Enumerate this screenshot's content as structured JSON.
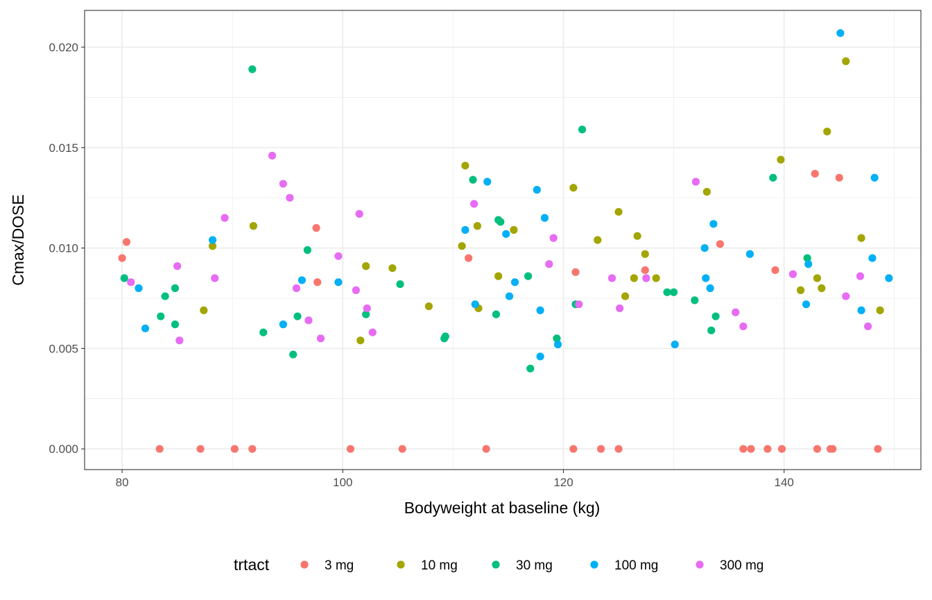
{
  "chart_data": {
    "type": "scatter",
    "xlabel": "Bodyweight at baseline (kg)",
    "ylabel": "Cmax/DOSE",
    "xlim": [
      76.6,
      152.4
    ],
    "ylim": [
      -0.00103,
      0.02183
    ],
    "x_ticks": [
      80,
      100,
      120,
      140
    ],
    "x_tick_labels": [
      "80",
      "100",
      "120",
      "140"
    ],
    "y_ticks": [
      0.0,
      0.005,
      0.01,
      0.015,
      0.02
    ],
    "y_tick_labels": [
      "0.000",
      "0.005",
      "0.010",
      "0.015",
      "0.020"
    ],
    "grid": true,
    "legend_position": "bottom",
    "legend_title": "trtact",
    "series": [
      {
        "name": "3 mg",
        "color": "#F8766D",
        "points": [
          [
            80.0,
            0.0095
          ],
          [
            80.4,
            0.0103
          ],
          [
            83.4,
            0.0
          ],
          [
            87.1,
            0.0
          ],
          [
            90.2,
            0.0
          ],
          [
            91.8,
            0.0
          ],
          [
            97.6,
            0.011
          ],
          [
            97.7,
            0.0083
          ],
          [
            100.7,
            0.0
          ],
          [
            105.4,
            0.0
          ],
          [
            111.4,
            0.0095
          ],
          [
            113.0,
            0.0
          ],
          [
            120.9,
            0.0
          ],
          [
            121.1,
            0.0088
          ],
          [
            123.4,
            0.0
          ],
          [
            125.0,
            0.0
          ],
          [
            127.4,
            0.0089
          ],
          [
            134.2,
            0.0102
          ],
          [
            136.3,
            0.0
          ],
          [
            137.0,
            0.0
          ],
          [
            138.5,
            0.0
          ],
          [
            139.2,
            0.0089
          ],
          [
            139.8,
            0.0
          ],
          [
            142.8,
            0.0137
          ],
          [
            143.0,
            0.0
          ],
          [
            144.2,
            0.0
          ],
          [
            144.4,
            0.0
          ],
          [
            145.0,
            0.0135
          ],
          [
            148.5,
            0.0
          ]
        ]
      },
      {
        "name": "10 mg",
        "color": "#A3A500",
        "points": [
          [
            87.4,
            0.0069
          ],
          [
            88.2,
            0.0101
          ],
          [
            91.9,
            0.0111
          ],
          [
            101.6,
            0.0054
          ],
          [
            102.1,
            0.0091
          ],
          [
            104.5,
            0.009
          ],
          [
            107.8,
            0.0071
          ],
          [
            110.8,
            0.0101
          ],
          [
            111.1,
            0.0141
          ],
          [
            112.2,
            0.0111
          ],
          [
            112.3,
            0.007
          ],
          [
            114.1,
            0.0086
          ],
          [
            115.5,
            0.0109
          ],
          [
            120.9,
            0.013
          ],
          [
            123.1,
            0.0104
          ],
          [
            125.0,
            0.0118
          ],
          [
            125.6,
            0.0076
          ],
          [
            126.4,
            0.0085
          ],
          [
            126.7,
            0.0106
          ],
          [
            127.4,
            0.0097
          ],
          [
            128.4,
            0.0085
          ],
          [
            133.0,
            0.0128
          ],
          [
            139.7,
            0.0144
          ],
          [
            141.5,
            0.0079
          ],
          [
            143.0,
            0.0085
          ],
          [
            143.4,
            0.008
          ],
          [
            143.9,
            0.0158
          ],
          [
            145.6,
            0.0193
          ],
          [
            147.0,
            0.0105
          ],
          [
            148.7,
            0.0069
          ]
        ]
      },
      {
        "name": "30 mg",
        "color": "#00BF7D",
        "points": [
          [
            80.2,
            0.0085
          ],
          [
            83.5,
            0.0066
          ],
          [
            83.9,
            0.0076
          ],
          [
            84.8,
            0.008
          ],
          [
            84.8,
            0.0062
          ],
          [
            91.8,
            0.0189
          ],
          [
            92.8,
            0.0058
          ],
          [
            95.5,
            0.0047
          ],
          [
            95.9,
            0.0066
          ],
          [
            96.8,
            0.0099
          ],
          [
            102.1,
            0.0067
          ],
          [
            105.2,
            0.0082
          ],
          [
            109.2,
            0.0055
          ],
          [
            109.3,
            0.0056
          ],
          [
            111.8,
            0.0134
          ],
          [
            113.9,
            0.0067
          ],
          [
            114.1,
            0.0114
          ],
          [
            114.3,
            0.0113
          ],
          [
            116.8,
            0.0086
          ],
          [
            117.0,
            0.004
          ],
          [
            119.4,
            0.0055
          ],
          [
            121.1,
            0.0072
          ],
          [
            121.7,
            0.0159
          ],
          [
            129.4,
            0.0078
          ],
          [
            130.0,
            0.0078
          ],
          [
            131.9,
            0.0074
          ],
          [
            133.4,
            0.0059
          ],
          [
            133.8,
            0.0066
          ],
          [
            139.0,
            0.0135
          ],
          [
            142.1,
            0.0095
          ]
        ]
      },
      {
        "name": "100 mg",
        "color": "#00B0F6",
        "points": [
          [
            81.5,
            0.008
          ],
          [
            82.1,
            0.006
          ],
          [
            88.2,
            0.0104
          ],
          [
            94.6,
            0.0062
          ],
          [
            96.3,
            0.0084
          ],
          [
            99.6,
            0.0083
          ],
          [
            111.1,
            0.0109
          ],
          [
            112.0,
            0.0072
          ],
          [
            113.1,
            0.0133
          ],
          [
            114.8,
            0.0107
          ],
          [
            115.1,
            0.0076
          ],
          [
            115.6,
            0.0083
          ],
          [
            117.6,
            0.0129
          ],
          [
            117.9,
            0.0069
          ],
          [
            117.9,
            0.0046
          ],
          [
            118.3,
            0.0115
          ],
          [
            119.5,
            0.0052
          ],
          [
            130.1,
            0.0052
          ],
          [
            132.8,
            0.01
          ],
          [
            132.9,
            0.0085
          ],
          [
            133.3,
            0.008
          ],
          [
            133.6,
            0.0112
          ],
          [
            136.9,
            0.0097
          ],
          [
            142.0,
            0.0072
          ],
          [
            142.2,
            0.0092
          ],
          [
            145.1,
            0.0207
          ],
          [
            147.0,
            0.0069
          ],
          [
            148.0,
            0.0095
          ],
          [
            148.2,
            0.0135
          ],
          [
            149.5,
            0.0085
          ]
        ]
      },
      {
        "name": "300 mg",
        "color": "#E76BF3",
        "points": [
          [
            80.8,
            0.0083
          ],
          [
            85.0,
            0.0091
          ],
          [
            85.2,
            0.0054
          ],
          [
            88.4,
            0.0085
          ],
          [
            89.3,
            0.0115
          ],
          [
            93.6,
            0.0146
          ],
          [
            94.6,
            0.0132
          ],
          [
            95.2,
            0.0125
          ],
          [
            95.8,
            0.008
          ],
          [
            96.9,
            0.0064
          ],
          [
            98.0,
            0.0055
          ],
          [
            99.6,
            0.0096
          ],
          [
            101.2,
            0.0079
          ],
          [
            101.5,
            0.0117
          ],
          [
            102.2,
            0.007
          ],
          [
            102.7,
            0.0058
          ],
          [
            111.9,
            0.0122
          ],
          [
            118.7,
            0.0092
          ],
          [
            119.1,
            0.0105
          ],
          [
            121.4,
            0.0072
          ],
          [
            124.4,
            0.0085
          ],
          [
            125.1,
            0.007
          ],
          [
            127.5,
            0.0085
          ],
          [
            132.0,
            0.0133
          ],
          [
            135.6,
            0.0068
          ],
          [
            136.3,
            0.0061
          ],
          [
            140.8,
            0.0087
          ],
          [
            145.6,
            0.0076
          ],
          [
            146.9,
            0.0086
          ],
          [
            147.6,
            0.0061
          ]
        ]
      }
    ]
  }
}
